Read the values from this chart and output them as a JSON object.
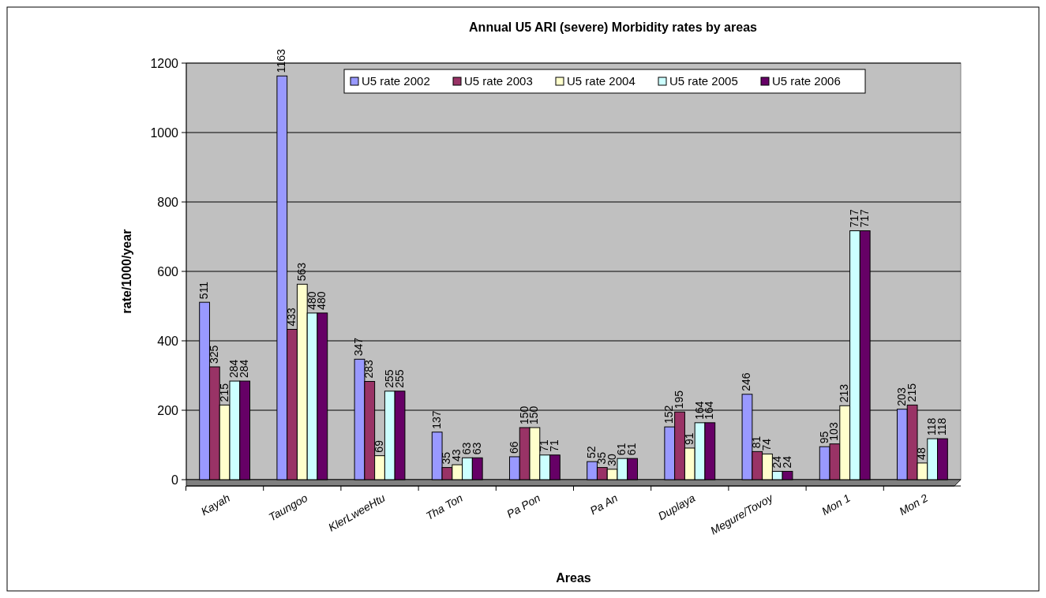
{
  "chart_data": {
    "type": "bar",
    "title": "Annual U5 ARI (severe) Morbidity rates by areas",
    "xlabel": "Areas",
    "ylabel": "rate/1000/year",
    "categories": [
      "Kayah",
      "Taungoo",
      "KlerLweeHtu",
      "Tha Ton",
      "Pa Pon",
      "Pa An",
      "Duplaya",
      "Megure/Tovoy",
      "Mon 1",
      "Mon 2"
    ],
    "series": [
      {
        "name": "U5 rate 2002",
        "color": "#9999ff",
        "values": [
          511,
          1163,
          347,
          137,
          66,
          52,
          152,
          246,
          95,
          203
        ]
      },
      {
        "name": "U5 rate 2003",
        "color": "#993366",
        "values": [
          325,
          433,
          283,
          35,
          150,
          35,
          195,
          81,
          103,
          215
        ]
      },
      {
        "name": "U5 rate 2004",
        "color": "#ffffcc",
        "values": [
          215,
          563,
          69,
          43,
          150,
          30,
          91,
          74,
          213,
          48
        ]
      },
      {
        "name": "U5 rate 2005",
        "color": "#ccffff",
        "values": [
          284,
          480,
          255,
          63,
          71,
          61,
          164,
          24,
          717,
          118
        ]
      },
      {
        "name": "U5 rate 2006",
        "color": "#660066",
        "values": [
          284,
          480,
          255,
          63,
          71,
          61,
          164,
          24,
          717,
          118
        ]
      }
    ],
    "ylim": [
      0,
      1200
    ],
    "yticks": [
      0,
      200,
      400,
      600,
      800,
      1000,
      1200
    ],
    "grid": "y",
    "legend": "top",
    "data_labels": true
  }
}
